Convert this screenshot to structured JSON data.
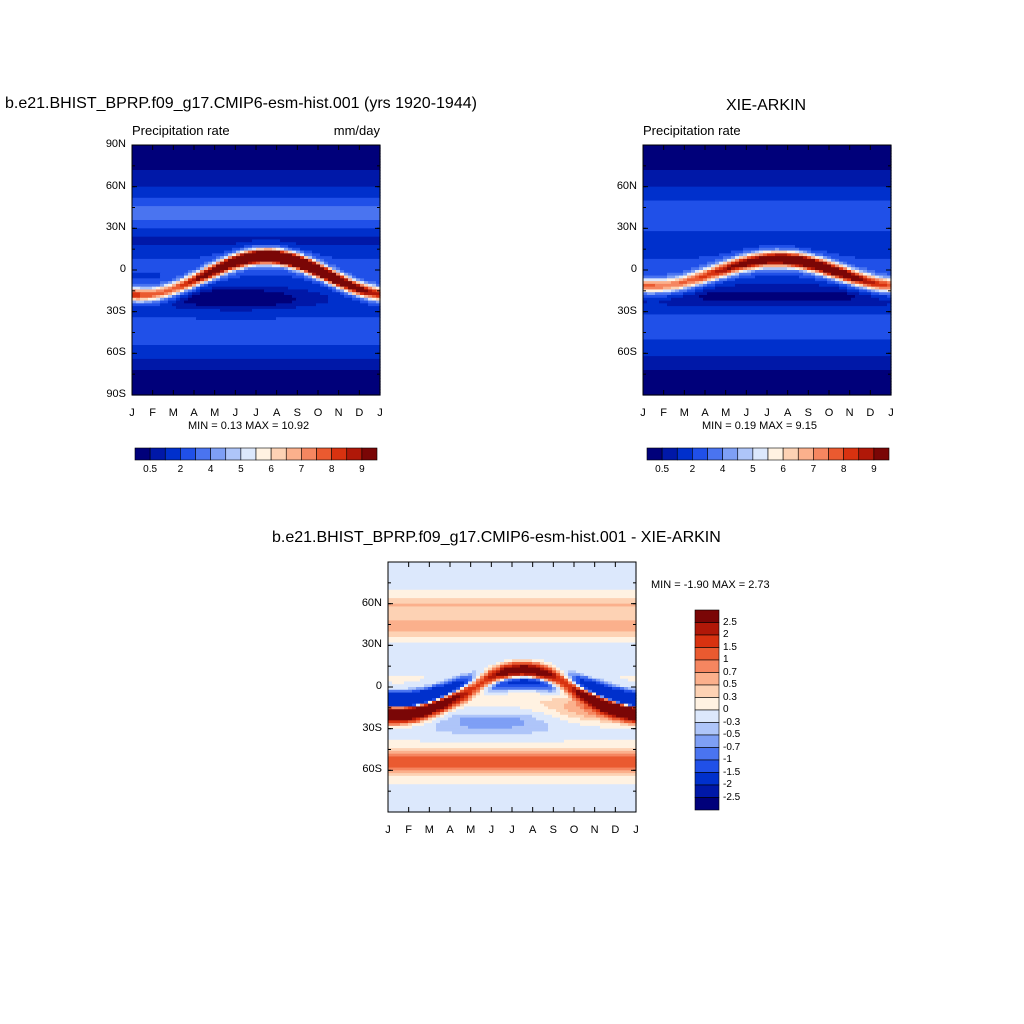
{
  "panels": {
    "model": {
      "title": "b.e21.BHIST_BPRP.f09_g17.CMIP6-esm-hist.001 (yrs 1920-1944)",
      "left_string": "Precipitation rate",
      "right_string": "mm/day",
      "minmax": "MIN =   0.13 MAX =   10.92"
    },
    "obs": {
      "title": "XIE-ARKIN",
      "left_string": "Precipitation rate",
      "minmax": "MIN =   0.19 MAX =   9.15"
    },
    "diff": {
      "title": "b.e21.BHIST_BPRP.f09_g17.CMIP6-esm-hist.001 - XIE-ARKIN",
      "minmax": "MIN =  -1.90 MAX =   2.73"
    }
  },
  "colors": {
    "precip_levels": [
      "#00007a",
      "#0018a8",
      "#0030cc",
      "#2050e8",
      "#4a74f0",
      "#7e9ff5",
      "#aec5f9",
      "#dce8fc",
      "#fff2e2",
      "#fdd2b4",
      "#fbb08c",
      "#f58660",
      "#ea5a30",
      "#d83210",
      "#b01808",
      "#7a0606"
    ],
    "diff_levels": [
      "#00007a",
      "#0018a8",
      "#0030cc",
      "#2050e8",
      "#4a74f0",
      "#7e9ff5",
      "#aec5f9",
      "#dce8fc",
      "#fff2e2",
      "#fdd2b4",
      "#fbb08c",
      "#f58660",
      "#ea5a30",
      "#d83210",
      "#b01808",
      "#7a0606"
    ]
  },
  "chart_data": [
    {
      "type": "heatmap",
      "title": "b.e21.BHIST_BPRP.f09_g17.CMIP6-esm-hist.001 (yrs 1920-1944)",
      "subtitle": "Precipitation rate",
      "units": "mm/day",
      "x_tick_labels": [
        "J",
        "F",
        "M",
        "A",
        "M",
        "J",
        "J",
        "A",
        "S",
        "O",
        "N",
        "D",
        "J"
      ],
      "y_tick_labels": [
        "90N",
        "60N",
        "30N",
        "0",
        "30S",
        "60S",
        "90S"
      ],
      "y_ticks": [
        90,
        60,
        30,
        0,
        -30,
        -60,
        -90
      ],
      "ylim": [
        -90,
        90
      ],
      "xlim": [
        0,
        12
      ],
      "min": 0.13,
      "max": 10.92,
      "colorbar_labels": [
        "0.5",
        "2",
        "4",
        "5",
        "6",
        "7",
        "8",
        "9"
      ]
    },
    {
      "type": "heatmap",
      "title": "XIE-ARKIN",
      "subtitle": "Precipitation rate",
      "x_tick_labels": [
        "J",
        "F",
        "M",
        "A",
        "M",
        "J",
        "J",
        "A",
        "S",
        "O",
        "N",
        "D",
        "J"
      ],
      "y_tick_labels": [
        "60N",
        "30N",
        "0",
        "30S",
        "60S"
      ],
      "y_ticks": [
        60,
        30,
        0,
        -30,
        -60
      ],
      "ylim": [
        -90,
        90
      ],
      "xlim": [
        0,
        12
      ],
      "min": 0.19,
      "max": 9.15,
      "colorbar_labels": [
        "0.5",
        "2",
        "4",
        "5",
        "6",
        "7",
        "8",
        "9"
      ]
    },
    {
      "type": "heatmap",
      "title": "b.e21.BHIST_BPRP.f09_g17.CMIP6-esm-hist.001 - XIE-ARKIN",
      "x_tick_labels": [
        "J",
        "F",
        "M",
        "A",
        "M",
        "J",
        "J",
        "A",
        "S",
        "O",
        "N",
        "D",
        "J"
      ],
      "y_tick_labels": [
        "60N",
        "30N",
        "0",
        "30S",
        "60S"
      ],
      "y_ticks": [
        60,
        30,
        0,
        -30,
        -60
      ],
      "ylim": [
        -90,
        90
      ],
      "xlim": [
        0,
        12
      ],
      "min": -1.9,
      "max": 2.73,
      "colorbar_labels": [
        "2.5",
        "2",
        "1.5",
        "1",
        "0.7",
        "0.5",
        "0.3",
        "0",
        "-0.3",
        "-0.5",
        "-0.7",
        "-1",
        "-1.5",
        "-2",
        "-2.5"
      ]
    }
  ]
}
